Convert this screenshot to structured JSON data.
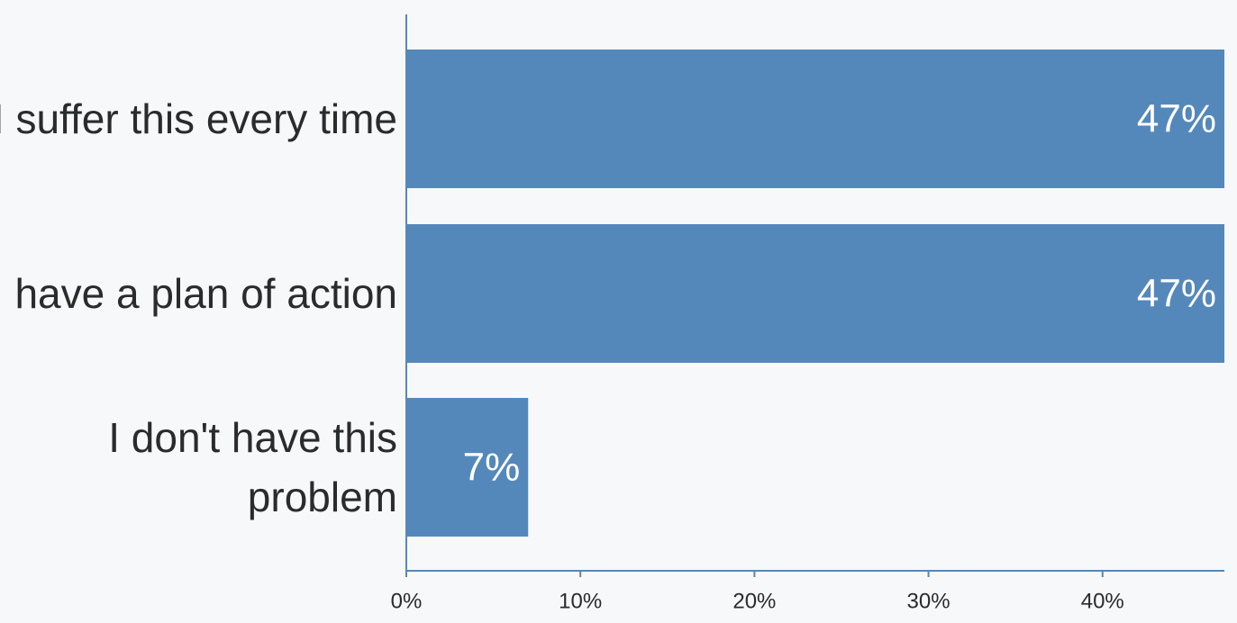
{
  "chart_data": {
    "type": "bar",
    "orientation": "horizontal",
    "categories": [
      [
        "I suffer this every time"
      ],
      [
        "I have a plan of action"
      ],
      [
        "I don't have this",
        "problem"
      ]
    ],
    "values": [
      47,
      47,
      7
    ],
    "value_labels": [
      "47%",
      "47%",
      "7%"
    ],
    "x_ticks": [
      0,
      10,
      20,
      30,
      40
    ],
    "x_tick_labels": [
      "0%",
      "10%",
      "20%",
      "30%",
      "40%"
    ],
    "xlim": [
      0,
      47
    ],
    "title": "",
    "xlabel": "",
    "ylabel": "",
    "grid": false,
    "legend": "none",
    "colors": {
      "bar": "#5588ba",
      "axis": "#5588ba",
      "label_text": "#2b2b2b",
      "value_text": "#ffffff",
      "background": "#f7f8fa"
    }
  }
}
